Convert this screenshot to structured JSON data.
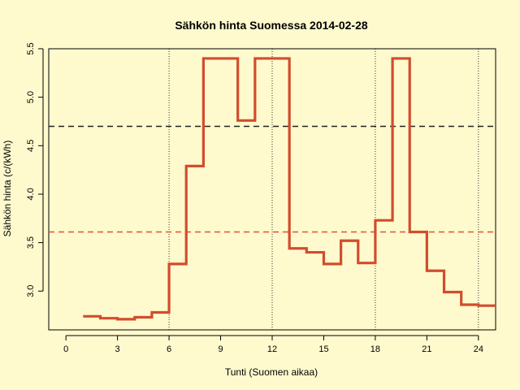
{
  "chart_data": {
    "type": "line",
    "step": true,
    "title": "Sähkön hinta Suomessa 2014-02-28",
    "xlabel": "Tunti (Suomen aikaa)",
    "ylabel": "Sähkön hinta (c/(kWh)",
    "xlim": [
      -1,
      25
    ],
    "ylim": [
      2.6,
      5.5
    ],
    "x_ticks": [
      "0",
      "3",
      "6",
      "9",
      "12",
      "15",
      "18",
      "21",
      "24"
    ],
    "y_ticks": [
      "3.0",
      "3.5",
      "4.0",
      "4.5",
      "5.0",
      "5.5"
    ],
    "vertical_reference_lines_x": [
      6,
      12,
      18,
      24
    ],
    "grid": false,
    "background": "#fffacd",
    "series": [
      {
        "color": "#d24c2e",
        "x": [
          1,
          2,
          3,
          4,
          5,
          6,
          7,
          8,
          9,
          10,
          11,
          12,
          13,
          14,
          15,
          16,
          17,
          18,
          19,
          20,
          21,
          22,
          23,
          24
        ],
        "values": [
          2.74,
          2.72,
          2.71,
          2.73,
          2.78,
          3.28,
          4.29,
          5.4,
          5.4,
          4.76,
          5.4,
          5.4,
          3.44,
          3.4,
          3.28,
          3.52,
          3.29,
          3.73,
          5.4,
          3.61,
          3.21,
          2.99,
          2.86,
          2.85
        ]
      }
    ],
    "reference_lines": [
      {
        "value": 4.7,
        "color": "#222222",
        "style": "dashed"
      },
      {
        "value": 3.61,
        "color": "#e0503a",
        "style": "dashed"
      }
    ]
  }
}
